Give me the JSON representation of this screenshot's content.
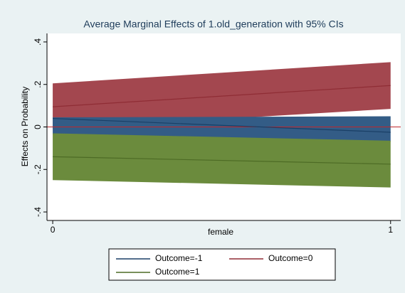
{
  "chart_data": {
    "type": "line",
    "title": "Average Marginal Effects of 1.old_generation with 95% CIs",
    "x_label": "female",
    "y_label": "Effects on Probability",
    "x": [
      0,
      1
    ],
    "xlim": [
      -0.017,
      1.03
    ],
    "xticks": [
      0,
      1
    ],
    "ylim": [
      -0.44,
      0.44
    ],
    "yticks": [
      {
        "value": -0.4,
        "label": "-.4"
      },
      {
        "value": -0.2,
        "label": "-.2"
      },
      0,
      {
        "value": 0.2,
        "label": ".2"
      },
      {
        "value": 0.4,
        "label": ".4"
      }
    ],
    "hline": 0,
    "hline_color": "#c0272d",
    "series": [
      {
        "name": "Outcome=0",
        "color": "#8f2d35",
        "band_color": "#a3474f",
        "values": [
          0.095,
          0.195
        ],
        "lower": [
          -0.01,
          0.085
        ],
        "upper": [
          0.205,
          0.305
        ]
      },
      {
        "name": "Outcome=-1",
        "color": "#1a3f66",
        "band_color": "#335c86",
        "values": [
          0.04,
          -0.025
        ],
        "lower": [
          -0.035,
          -0.07
        ],
        "upper": [
          0.045,
          0.05
        ]
      },
      {
        "name": "Outcome=1",
        "color": "#4d6b25",
        "band_color": "#6b8b3d",
        "values": [
          -0.14,
          -0.175
        ],
        "lower": [
          -0.25,
          -0.285
        ],
        "upper": [
          -0.03,
          -0.065
        ]
      }
    ],
    "legend_order": [
      1,
      0,
      2
    ]
  }
}
